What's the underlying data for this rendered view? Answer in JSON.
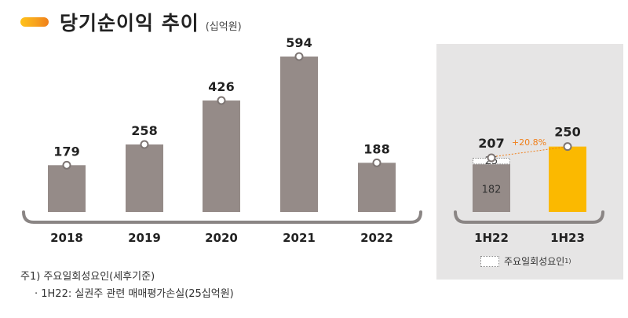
{
  "header": {
    "title": "당기순이익 추이",
    "unit": "(십억원)"
  },
  "colors": {
    "bar_gray": "#958b88",
    "bar_highlight": "#fbb900",
    "growth_label": "#f07f1a",
    "axis": "#8a8584"
  },
  "chart_data": [
    {
      "type": "bar",
      "categories": [
        "2018",
        "2019",
        "2020",
        "2021",
        "2022"
      ],
      "values": [
        179,
        258,
        426,
        594,
        188
      ],
      "ylim": [
        0,
        650
      ]
    },
    {
      "type": "bar",
      "categories": [
        "1H22",
        "1H23"
      ],
      "values": [
        207,
        250
      ],
      "segments_1H22": {
        "base": 182,
        "one_off": 25
      },
      "growth_label": "+20.8%",
      "ylim": [
        0,
        650
      ]
    }
  ],
  "legend": {
    "label": "주요일회성요인",
    "sup": "1)"
  },
  "notes": {
    "line1": "주1) 주요일회성요인(세후기준)",
    "line2": "· 1H22: 실권주 관련 매매평가손실(25십억원)"
  }
}
